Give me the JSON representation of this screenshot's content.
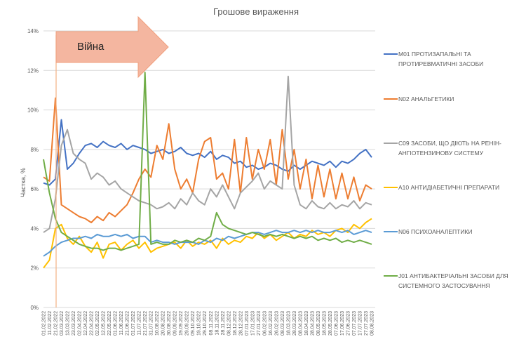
{
  "chart_data": {
    "type": "line",
    "title": "Грошове вираження",
    "xlabel": "",
    "ylabel": "Частка, %",
    "ylim": [
      0,
      14
    ],
    "yticks": [
      "0%",
      "2%",
      "4%",
      "6%",
      "8%",
      "10%",
      "12%",
      "14%"
    ],
    "grid": true,
    "legend_position": "right",
    "annotation": {
      "label": "Війна",
      "date": "24.02.2022",
      "color": "#F4B183"
    },
    "categories": [
      "01.02.2022",
      "11.02.2022",
      "21.02.2022",
      "03.03.2022",
      "13.03.2022",
      "23.03.2022",
      "02.04.2022",
      "12.04.2022",
      "22.04.2022",
      "02.05.2022",
      "12.05.2022",
      "22.05.2022",
      "01.06.2022",
      "11.06.2022",
      "21.06.2022",
      "01.07.2022",
      "11.07.2022",
      "21.07.2022",
      "31.07.2022",
      "10.08.2022",
      "20.08.2022",
      "30.08.2022",
      "09.09.2022",
      "19.09.2022",
      "29.09.2022",
      "09.10.2022",
      "19.10.2022",
      "29.10.2022",
      "08.11.2022",
      "18.11.2022",
      "28.11.2022",
      "08.12.2022",
      "18.12.2022",
      "28.12.2022",
      "07.01.2023",
      "17.01.2023",
      "27.01.2023",
      "06.02.2023",
      "16.02.2023",
      "26.02.2023",
      "08.03.2023",
      "18.03.2023",
      "28.03.2023",
      "08.04.2023",
      "18.04.2023",
      "28.04.2023",
      "08.05.2023",
      "18.05.2023",
      "28.05.2023",
      "07.06.2023",
      "17.06.2023",
      "27.06.2023",
      "07.07.2023",
      "17.07.2023",
      "27.07.2023",
      "08.08.2023"
    ],
    "series": [
      {
        "name": "M01 ПРОТИЗАПАЛЬНІ ТА ПРОТИРЕВМАТИЧНІ ЗАСОБИ",
        "color": "#4472C4",
        "values": [
          6.3,
          6.2,
          6.5,
          9.5,
          7.0,
          7.3,
          7.8,
          8.2,
          8.3,
          8.1,
          8.4,
          8.2,
          8.1,
          8.3,
          8.0,
          8.2,
          8.1,
          8.0,
          7.8,
          7.9,
          8.0,
          7.8,
          7.9,
          8.1,
          7.8,
          7.7,
          7.8,
          7.6,
          7.9,
          7.5,
          7.7,
          7.6,
          7.3,
          7.4,
          7.1,
          7.2,
          7.0,
          7.1,
          7.3,
          7.2,
          7.0,
          6.9,
          7.2,
          7.0,
          7.2,
          7.4,
          7.3,
          7.2,
          7.4,
          7.1,
          7.4,
          7.3,
          7.5,
          7.8,
          8.0,
          7.6
        ]
      },
      {
        "name": "N02 АНАЛЬГЕТИКИ",
        "color": "#ED7D31",
        "values": [
          6.6,
          6.4,
          10.6,
          5.2,
          5.0,
          4.8,
          4.6,
          4.5,
          4.3,
          4.6,
          4.4,
          4.8,
          4.6,
          4.9,
          5.2,
          5.8,
          6.5,
          7.0,
          6.6,
          8.2,
          7.5,
          9.3,
          7.0,
          6.0,
          6.5,
          5.8,
          7.5,
          8.4,
          8.6,
          6.5,
          6.8,
          6.0,
          8.5,
          5.8,
          8.6,
          6.5,
          8.0,
          7.0,
          8.5,
          6.2,
          9.0,
          6.5,
          8.0,
          6.0,
          7.5,
          5.5,
          7.2,
          5.6,
          7.0,
          5.5,
          6.8,
          5.5,
          6.6,
          5.4,
          6.2,
          6.0
        ]
      },
      {
        "name": "C09 ЗАСОБИ, ЩО ДІЮТЬ НА РЕНІН-АНГІОТЕНЗИНОВУ СИСТЕМУ",
        "color": "#A5A5A5",
        "values": [
          3.8,
          4.0,
          5.5,
          8.2,
          9.0,
          7.8,
          7.5,
          7.3,
          6.5,
          6.8,
          6.6,
          6.2,
          6.4,
          6.0,
          5.8,
          5.6,
          5.4,
          5.3,
          5.2,
          5.0,
          5.1,
          5.3,
          5.0,
          5.5,
          5.2,
          5.8,
          5.4,
          5.2,
          6.0,
          5.6,
          6.2,
          5.6,
          5.0,
          5.8,
          6.1,
          6.4,
          6.8,
          6.0,
          6.4,
          6.2,
          6.0,
          11.7,
          6.2,
          5.2,
          5.0,
          5.4,
          5.1,
          5.0,
          5.3,
          5.0,
          5.2,
          5.1,
          5.4,
          5.0,
          5.3,
          5.2
        ]
      },
      {
        "name": "A10 АНТИДІАБЕТИЧНІ ПРЕПАРАТИ",
        "color": "#FFC000",
        "values": [
          2.0,
          2.4,
          4.0,
          4.2,
          3.5,
          3.2,
          3.6,
          3.1,
          2.8,
          3.3,
          2.5,
          3.2,
          3.3,
          2.9,
          3.2,
          3.4,
          3.0,
          3.3,
          2.8,
          3.0,
          3.1,
          3.2,
          3.3,
          3.0,
          3.4,
          3.1,
          3.3,
          3.2,
          3.4,
          3.0,
          3.5,
          3.2,
          3.4,
          3.3,
          3.6,
          3.5,
          3.8,
          3.5,
          3.7,
          3.4,
          3.6,
          3.8,
          3.5,
          3.7,
          3.6,
          3.9,
          3.7,
          3.8,
          3.6,
          3.9,
          4.0,
          3.8,
          4.2,
          4.0,
          4.3,
          4.5
        ]
      },
      {
        "name": "N06 ПСИХОАНАЛЕПТИКИ",
        "color": "#5B9BD5",
        "values": [
          2.6,
          2.8,
          3.1,
          3.3,
          3.4,
          3.5,
          3.5,
          3.6,
          3.5,
          3.7,
          3.6,
          3.6,
          3.7,
          3.6,
          3.7,
          3.5,
          3.6,
          3.6,
          3.3,
          3.4,
          3.3,
          3.3,
          3.2,
          3.3,
          3.3,
          3.3,
          3.2,
          3.4,
          3.3,
          3.5,
          3.4,
          3.6,
          3.5,
          3.6,
          3.7,
          3.8,
          3.8,
          3.7,
          3.8,
          3.9,
          3.8,
          3.8,
          3.9,
          3.8,
          3.9,
          3.8,
          3.9,
          3.8,
          3.8,
          3.9,
          3.8,
          3.9,
          3.7,
          3.8,
          3.9,
          3.8
        ]
      },
      {
        "name": "J01 АНТИБАКТЕРІАЛЬНІ ЗАСОБИ ДЛЯ СИСТЕМНОГО ЗАСТОСУВАННЯ",
        "color": "#70AD47",
        "values": [
          7.5,
          5.8,
          4.5,
          3.8,
          3.6,
          3.4,
          3.2,
          3.1,
          3.0,
          3.0,
          2.9,
          3.0,
          3.0,
          2.9,
          3.0,
          3.1,
          3.2,
          11.9,
          3.2,
          3.3,
          3.2,
          3.2,
          3.4,
          3.3,
          3.4,
          3.3,
          3.5,
          3.4,
          3.6,
          4.8,
          4.2,
          4.0,
          3.9,
          3.8,
          3.7,
          3.8,
          3.7,
          3.6,
          3.7,
          3.6,
          3.7,
          3.6,
          3.5,
          3.6,
          3.5,
          3.6,
          3.4,
          3.5,
          3.4,
          3.5,
          3.3,
          3.4,
          3.3,
          3.4,
          3.3,
          3.2
        ]
      }
    ]
  }
}
